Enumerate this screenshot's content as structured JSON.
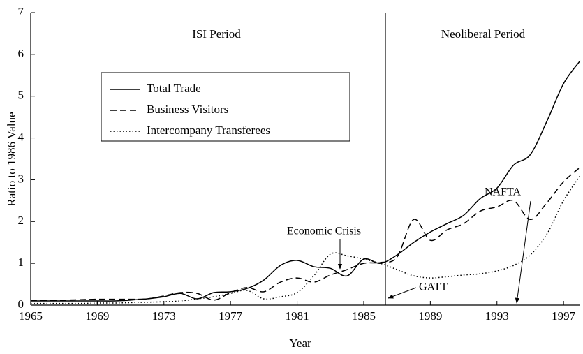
{
  "chart_data": {
    "type": "line",
    "x_label": "Year",
    "y_label": "Ratio to 1986 Value",
    "x": [
      1965,
      1966,
      1967,
      1968,
      1969,
      1970,
      1971,
      1972,
      1973,
      1974,
      1975,
      1976,
      1977,
      1978,
      1979,
      1980,
      1981,
      1982,
      1983,
      1984,
      1985,
      1986,
      1987,
      1988,
      1989,
      1990,
      1991,
      1992,
      1993,
      1994,
      1995,
      1996,
      1997,
      1998
    ],
    "series": [
      {
        "name": "Total Trade",
        "color": "#000",
        "dash": "solid",
        "values": [
          0.1,
          0.1,
          0.1,
          0.1,
          0.1,
          0.1,
          0.12,
          0.15,
          0.2,
          0.28,
          0.15,
          0.3,
          0.32,
          0.4,
          0.6,
          0.95,
          1.07,
          0.92,
          0.88,
          0.7,
          1.1,
          1.0,
          1.2,
          1.5,
          1.75,
          1.95,
          2.15,
          2.55,
          2.8,
          3.35,
          3.6,
          4.4,
          5.3,
          5.85
        ]
      },
      {
        "name": "Business Visitors",
        "color": "#000",
        "dash": "dashed",
        "values": [
          0.12,
          0.12,
          0.12,
          0.13,
          0.14,
          0.14,
          0.14,
          0.15,
          0.22,
          0.3,
          0.28,
          0.12,
          0.3,
          0.42,
          0.32,
          0.55,
          0.65,
          0.55,
          0.72,
          0.85,
          1.0,
          1.02,
          1.15,
          2.05,
          1.55,
          1.8,
          1.95,
          2.25,
          2.35,
          2.5,
          2.05,
          2.45,
          2.95,
          3.3
        ]
      },
      {
        "name": "Intercompany Transferees",
        "color": "#000",
        "dash": "dotted",
        "values": [
          0.04,
          0.04,
          0.04,
          0.04,
          0.05,
          0.05,
          0.06,
          0.07,
          0.08,
          0.1,
          0.15,
          0.2,
          0.28,
          0.35,
          0.15,
          0.2,
          0.3,
          0.7,
          1.22,
          1.18,
          1.1,
          1.0,
          0.85,
          0.7,
          0.65,
          0.68,
          0.72,
          0.75,
          0.82,
          0.95,
          1.2,
          1.7,
          2.5,
          3.1
        ]
      }
    ],
    "xlim": [
      1965,
      1998
    ],
    "xticks": [
      1965,
      1969,
      1973,
      1977,
      1981,
      1985,
      1989,
      1993,
      1997
    ],
    "ylim": [
      0,
      7
    ],
    "yticks": [
      0,
      1,
      2,
      3,
      4,
      5,
      6,
      7
    ],
    "divider_x": 1986.3,
    "annotations": {
      "isi": "ISI Period",
      "neoliberal": "Neoliberal Period",
      "crisis": "Economic Crisis",
      "gatt": "GATT",
      "nafta": "NAFTA"
    },
    "legend": "upper left"
  }
}
